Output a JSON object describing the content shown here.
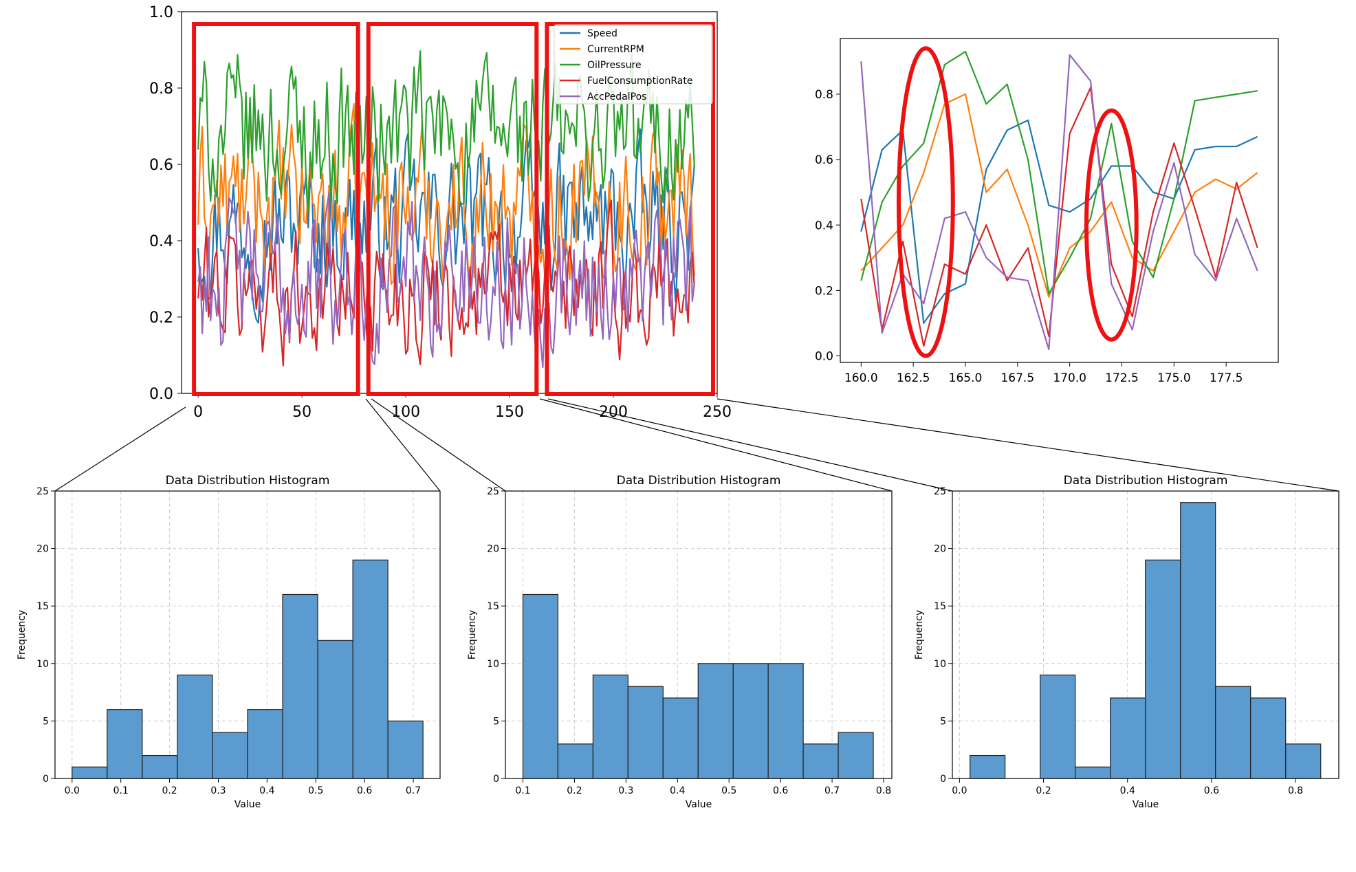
{
  "colors": {
    "series": [
      "#1f77b4",
      "#ff7f0e",
      "#2ca02c",
      "#d62728",
      "#9467bd"
    ],
    "bar_fill": "#5b9bd0",
    "highlight": "#ee1111",
    "grid": "#cccccc"
  },
  "chart_data": [
    {
      "id": "main",
      "type": "line",
      "xlim": [
        -8,
        250
      ],
      "ylim": [
        0,
        1.0
      ],
      "xticks": [
        0,
        50,
        100,
        150,
        200,
        250
      ],
      "xtick_labels": [
        "0",
        "50",
        "100",
        "150",
        "200",
        "250"
      ],
      "yticks": [
        0.0,
        0.2,
        0.4,
        0.6,
        0.8,
        1.0
      ],
      "ytick_labels": [
        "0.0",
        "0.2",
        "0.4",
        "0.6",
        "0.8",
        "1.0"
      ],
      "legend": "top-right",
      "n_points": 240,
      "series": [
        {
          "name": "Speed",
          "baseline": 0.45
        },
        {
          "name": "CurrentRPM",
          "baseline": 0.5
        },
        {
          "name": "OilPressure",
          "baseline": 0.68
        },
        {
          "name": "FuelConsumptionRate",
          "baseline": 0.27
        },
        {
          "name": "AccPedalPos",
          "baseline": 0.3
        }
      ],
      "highlight_boxes": [
        [
          -2,
          77
        ],
        [
          82,
          163
        ],
        [
          168,
          248
        ]
      ]
    },
    {
      "id": "zoom",
      "type": "line",
      "xlim": [
        159,
        180
      ],
      "ylim": [
        -0.02,
        0.97
      ],
      "xticks": [
        160.0,
        162.5,
        165.0,
        167.5,
        170.0,
        172.5,
        175.0,
        177.5
      ],
      "xtick_labels": [
        "160.0",
        "162.5",
        "165.0",
        "167.5",
        "170.0",
        "172.5",
        "175.0",
        "177.5"
      ],
      "yticks": [
        0.0,
        0.2,
        0.4,
        0.6,
        0.8
      ],
      "ytick_labels": [
        "0.0",
        "0.2",
        "0.4",
        "0.6",
        "0.8"
      ],
      "x": [
        160,
        161,
        162,
        163,
        164,
        165,
        166,
        167,
        168,
        169,
        170,
        171,
        172,
        173,
        174,
        175,
        176,
        177,
        178,
        179
      ],
      "series": [
        {
          "name": "Speed",
          "values": [
            0.38,
            0.63,
            0.69,
            0.1,
            0.19,
            0.22,
            0.57,
            0.69,
            0.72,
            0.46,
            0.44,
            0.48,
            0.58,
            0.58,
            0.5,
            0.48,
            0.63,
            0.64,
            0.64,
            0.67
          ]
        },
        {
          "name": "CurrentRPM",
          "values": [
            0.26,
            0.33,
            0.4,
            0.56,
            0.77,
            0.8,
            0.5,
            0.57,
            0.4,
            0.18,
            0.33,
            0.38,
            0.47,
            0.3,
            0.26,
            0.38,
            0.5,
            0.54,
            0.51,
            0.56
          ]
        },
        {
          "name": "OilPressure",
          "values": [
            0.23,
            0.47,
            0.58,
            0.65,
            0.89,
            0.93,
            0.77,
            0.83,
            0.6,
            0.19,
            0.3,
            0.42,
            0.71,
            0.35,
            0.24,
            0.48,
            0.78,
            0.79,
            0.8,
            0.81
          ]
        },
        {
          "name": "FuelConsumptionRate",
          "values": [
            0.48,
            0.08,
            0.35,
            0.03,
            0.28,
            0.25,
            0.4,
            0.23,
            0.33,
            0.06,
            0.68,
            0.82,
            0.28,
            0.12,
            0.44,
            0.65,
            0.45,
            0.24,
            0.53,
            0.33
          ]
        },
        {
          "name": "AccPedalPos",
          "values": [
            0.9,
            0.07,
            0.25,
            0.16,
            0.42,
            0.44,
            0.3,
            0.24,
            0.23,
            0.02,
            0.92,
            0.84,
            0.22,
            0.08,
            0.38,
            0.59,
            0.31,
            0.23,
            0.42,
            0.26
          ]
        }
      ],
      "highlight_ellipses": [
        {
          "cx": 163.1,
          "cy": 0.47,
          "rx": 1.3,
          "ry": 0.47
        },
        {
          "cx": 172.0,
          "cy": 0.4,
          "rx": 1.2,
          "ry": 0.35
        }
      ]
    },
    {
      "id": "hist1",
      "type": "bar",
      "title": "Data Distribution Histogram",
      "xlabel": "Value",
      "ylabel": "Frequency",
      "xlim": [
        -0.035,
        0.755
      ],
      "ylim": [
        0,
        25
      ],
      "xticks": [
        0.0,
        0.1,
        0.2,
        0.3,
        0.4,
        0.5,
        0.6,
        0.7
      ],
      "xtick_labels": [
        "0.0",
        "0.1",
        "0.2",
        "0.3",
        "0.4",
        "0.5",
        "0.6",
        "0.7"
      ],
      "yticks": [
        0,
        5,
        10,
        15,
        20,
        25
      ],
      "ytick_labels": [
        "0",
        "5",
        "10",
        "15",
        "20",
        "25"
      ],
      "bin_edges": [
        0.0,
        0.072,
        0.144,
        0.216,
        0.288,
        0.36,
        0.432,
        0.504,
        0.576,
        0.648,
        0.72
      ],
      "values": [
        1,
        6,
        2,
        9,
        4,
        6,
        16,
        12,
        19,
        5
      ]
    },
    {
      "id": "hist2",
      "type": "bar",
      "title": "Data Distribution Histogram",
      "xlabel": "Value",
      "ylabel": "Frequency",
      "xlim": [
        0.066,
        0.816
      ],
      "ylim": [
        0,
        25
      ],
      "xticks": [
        0.1,
        0.2,
        0.3,
        0.4,
        0.5,
        0.6,
        0.7,
        0.8
      ],
      "xtick_labels": [
        "0.1",
        "0.2",
        "0.3",
        "0.4",
        "0.5",
        "0.6",
        "0.7",
        "0.8"
      ],
      "yticks": [
        0,
        5,
        10,
        15,
        20,
        25
      ],
      "ytick_labels": [
        "0",
        "5",
        "10",
        "15",
        "20",
        "25"
      ],
      "bin_edges": [
        0.1,
        0.168,
        0.236,
        0.304,
        0.372,
        0.44,
        0.508,
        0.576,
        0.644,
        0.712,
        0.78
      ],
      "values": [
        16,
        3,
        9,
        8,
        7,
        10,
        10,
        10,
        3,
        4
      ]
    },
    {
      "id": "hist3",
      "type": "bar",
      "title": "Data Distribution Histogram",
      "xlabel": "Value",
      "ylabel": "Frequency",
      "xlim": [
        -0.017,
        0.903
      ],
      "ylim": [
        0,
        25
      ],
      "xticks": [
        0.0,
        0.2,
        0.4,
        0.6,
        0.8
      ],
      "xtick_labels": [
        "0.0",
        "0.2",
        "0.4",
        "0.6",
        "0.8"
      ],
      "yticks": [
        0,
        5,
        10,
        15,
        20,
        25
      ],
      "ytick_labels": [
        "0",
        "5",
        "10",
        "15",
        "20",
        "25"
      ],
      "bin_edges": [
        0.025,
        0.1085,
        0.192,
        0.2755,
        0.359,
        0.4425,
        0.526,
        0.6095,
        0.693,
        0.7765,
        0.86
      ],
      "values": [
        2,
        0,
        9,
        1,
        7,
        19,
        24,
        8,
        7,
        3
      ]
    }
  ]
}
